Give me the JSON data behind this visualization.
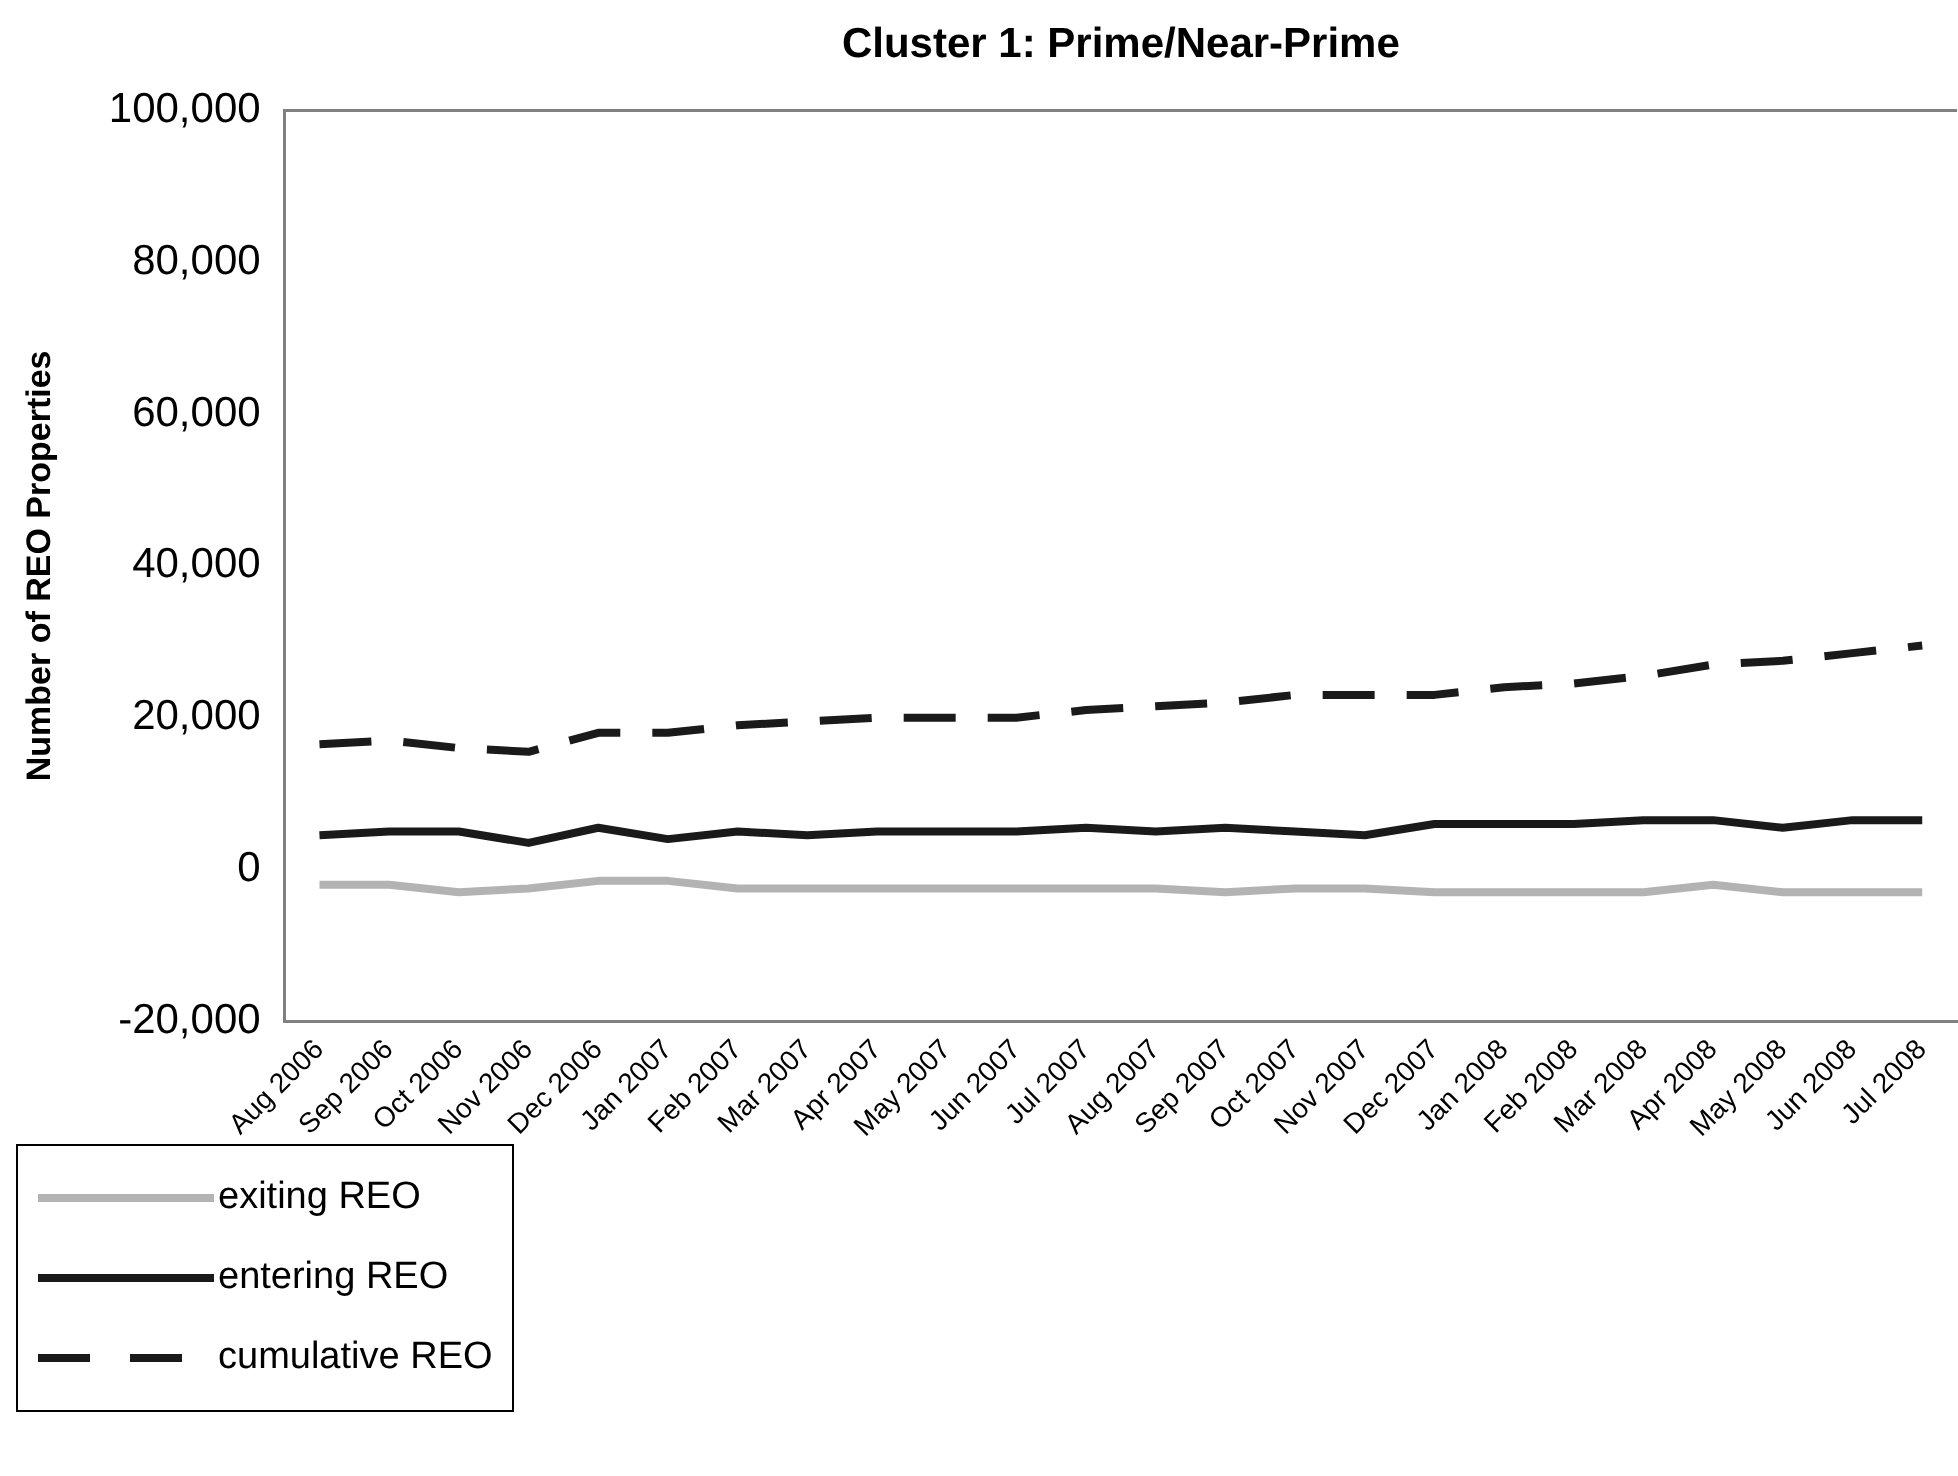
{
  "chart_data": {
    "type": "line",
    "title": "Cluster 1: Prime/Near-Prime",
    "ylabel": "Number of REO Properties",
    "categories": [
      "Aug 2006",
      "Sep 2006",
      "Oct 2006",
      "Nov 2006",
      "Dec 2006",
      "Jan 2007",
      "Feb 2007",
      "Mar 2007",
      "Apr 2007",
      "May 2007",
      "Jun 2007",
      "Jul 2007",
      "Aug 2007",
      "Sep 2007",
      "Oct 2007",
      "Nov 2007",
      "Dec 2007",
      "Jan 2008",
      "Feb 2008",
      "Mar 2008",
      "Apr 2008",
      "May 2008",
      "Jun 2008",
      "Jul 2008"
    ],
    "series": [
      {
        "name": "exiting REO",
        "color": "#b3b3b3",
        "line_style": "solid",
        "values": [
          -2000,
          -2000,
          -3000,
          -2500,
          -1500,
          -1500,
          -2500,
          -2500,
          -2500,
          -2500,
          -2500,
          -2500,
          -2500,
          -3000,
          -2500,
          -2500,
          -3000,
          -3000,
          -3000,
          -3000,
          -2000,
          -3000,
          -3000,
          -3000
        ]
      },
      {
        "name": "entering REO",
        "color": "#1a1a1a",
        "line_style": "solid",
        "values": [
          4500,
          5000,
          5000,
          3500,
          5500,
          4000,
          5000,
          4500,
          5000,
          5000,
          5000,
          5500,
          5000,
          5500,
          5000,
          4500,
          6000,
          6000,
          6000,
          6500,
          6500,
          5500,
          6500,
          6500
        ]
      },
      {
        "name": "cumulative REO",
        "color": "#1a1a1a",
        "line_style": "dashed",
        "values": [
          16500,
          17000,
          16000,
          15500,
          18000,
          18000,
          19000,
          19500,
          20000,
          20000,
          20000,
          21000,
          21500,
          22000,
          23000,
          23000,
          23000,
          24000,
          24500,
          25500,
          27000,
          27500,
          28500,
          29500
        ]
      }
    ],
    "ylim": [
      -20000,
      100000
    ],
    "yticks": [
      {
        "value": -20000,
        "label": "-20,000"
      },
      0,
      {
        "value": 20000,
        "label": "20,000"
      },
      {
        "value": 40000,
        "label": "40,000"
      },
      {
        "value": 60000,
        "label": "60,000"
      },
      {
        "value": 80000,
        "label": "80,000"
      },
      {
        "value": 100000,
        "label": "100,000"
      }
    ],
    "grid": false,
    "legend": "bottom left",
    "marker": "none"
  }
}
